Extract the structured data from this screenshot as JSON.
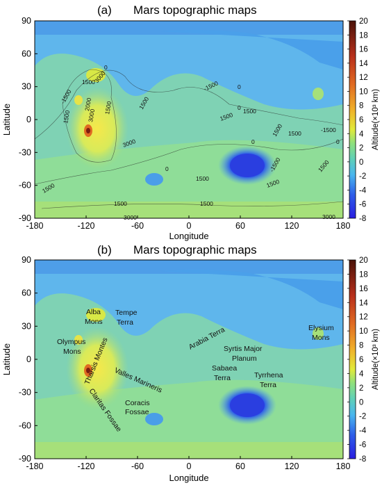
{
  "panels": {
    "a": {
      "label": "(a)",
      "title": "Mars topographic maps",
      "contour_labels": [
        {
          "text": "1500"
        },
        {
          "text": "3000"
        },
        {
          "text": "-1500"
        },
        {
          "text": "2000"
        },
        {
          "text": "3000"
        },
        {
          "text": "1500"
        },
        {
          "text": "1500"
        },
        {
          "text": "3000"
        },
        {
          "text": "0"
        },
        {
          "text": "-1500"
        },
        {
          "text": "0"
        },
        {
          "text": "1500"
        },
        {
          "text": "0"
        },
        {
          "text": "1500"
        },
        {
          "text": "1500"
        },
        {
          "text": "-1500"
        },
        {
          "text": "0"
        },
        {
          "text": "1500"
        },
        {
          "text": "1500"
        },
        {
          "text": "1500"
        },
        {
          "text": "1500"
        },
        {
          "text": "-1500"
        },
        {
          "text": "0"
        },
        {
          "text": "1500"
        },
        {
          "text": "1500"
        },
        {
          "text": "1500"
        },
        {
          "text": "3000"
        },
        {
          "text": "3000"
        },
        {
          "text": "1500"
        },
        {
          "text": "0"
        }
      ]
    },
    "b": {
      "label": "(b)",
      "title": "Mars topographic maps",
      "features": [
        {
          "text": "Alba",
          "rotate": 0
        },
        {
          "text": "Mons",
          "rotate": 0
        },
        {
          "text": "Tempe",
          "rotate": 0
        },
        {
          "text": "Terra",
          "rotate": 0
        },
        {
          "text": "Olympus",
          "rotate": 0
        },
        {
          "text": "Mons",
          "rotate": 0
        },
        {
          "text": "Arabia Terra",
          "rotate": -28
        },
        {
          "text": "Tharsis Montes",
          "rotate": -68
        },
        {
          "text": "Valles Marineris",
          "rotate": 24
        },
        {
          "text": "Claritas Fossae",
          "rotate": 55
        },
        {
          "text": "Coracis",
          "rotate": 0
        },
        {
          "text": "Fossae",
          "rotate": 0
        },
        {
          "text": "Syrtis Major",
          "rotate": 0
        },
        {
          "text": "Planum",
          "rotate": 0
        },
        {
          "text": "Sabaea",
          "rotate": 0
        },
        {
          "text": "Terra",
          "rotate": 0
        },
        {
          "text": "Tyrrhena",
          "rotate": 0
        },
        {
          "text": "Terra",
          "rotate": 0
        },
        {
          "text": "Elysium",
          "rotate": 0
        },
        {
          "text": "Mons",
          "rotate": 0
        }
      ]
    }
  },
  "axes": {
    "xlabel": "Longitude",
    "ylabel": "Latitude",
    "xticks": [
      "-180",
      "-120",
      "-60",
      "0",
      "60",
      "120",
      "180"
    ],
    "yticks": [
      "90",
      "60",
      "30",
      "0",
      "-30",
      "-60",
      "-90"
    ],
    "xlim": [
      -180,
      180
    ],
    "ylim": [
      -90,
      90
    ]
  },
  "colorbar": {
    "label": "Altitude(×10³ km)",
    "ticks": [
      "20",
      "18",
      "16",
      "14",
      "12",
      "10",
      "8",
      "6",
      "4",
      "2",
      "0",
      "-2",
      "-4",
      "-6",
      "-8"
    ],
    "range": [
      -8,
      20
    ],
    "colors": [
      "#2a1ee0",
      "#2e5ee8",
      "#4ab6ee",
      "#5fd0b8",
      "#8ee07c",
      "#e2ea3a",
      "#f0b02a",
      "#e06a22",
      "#b8301c",
      "#4a1208"
    ]
  }
}
